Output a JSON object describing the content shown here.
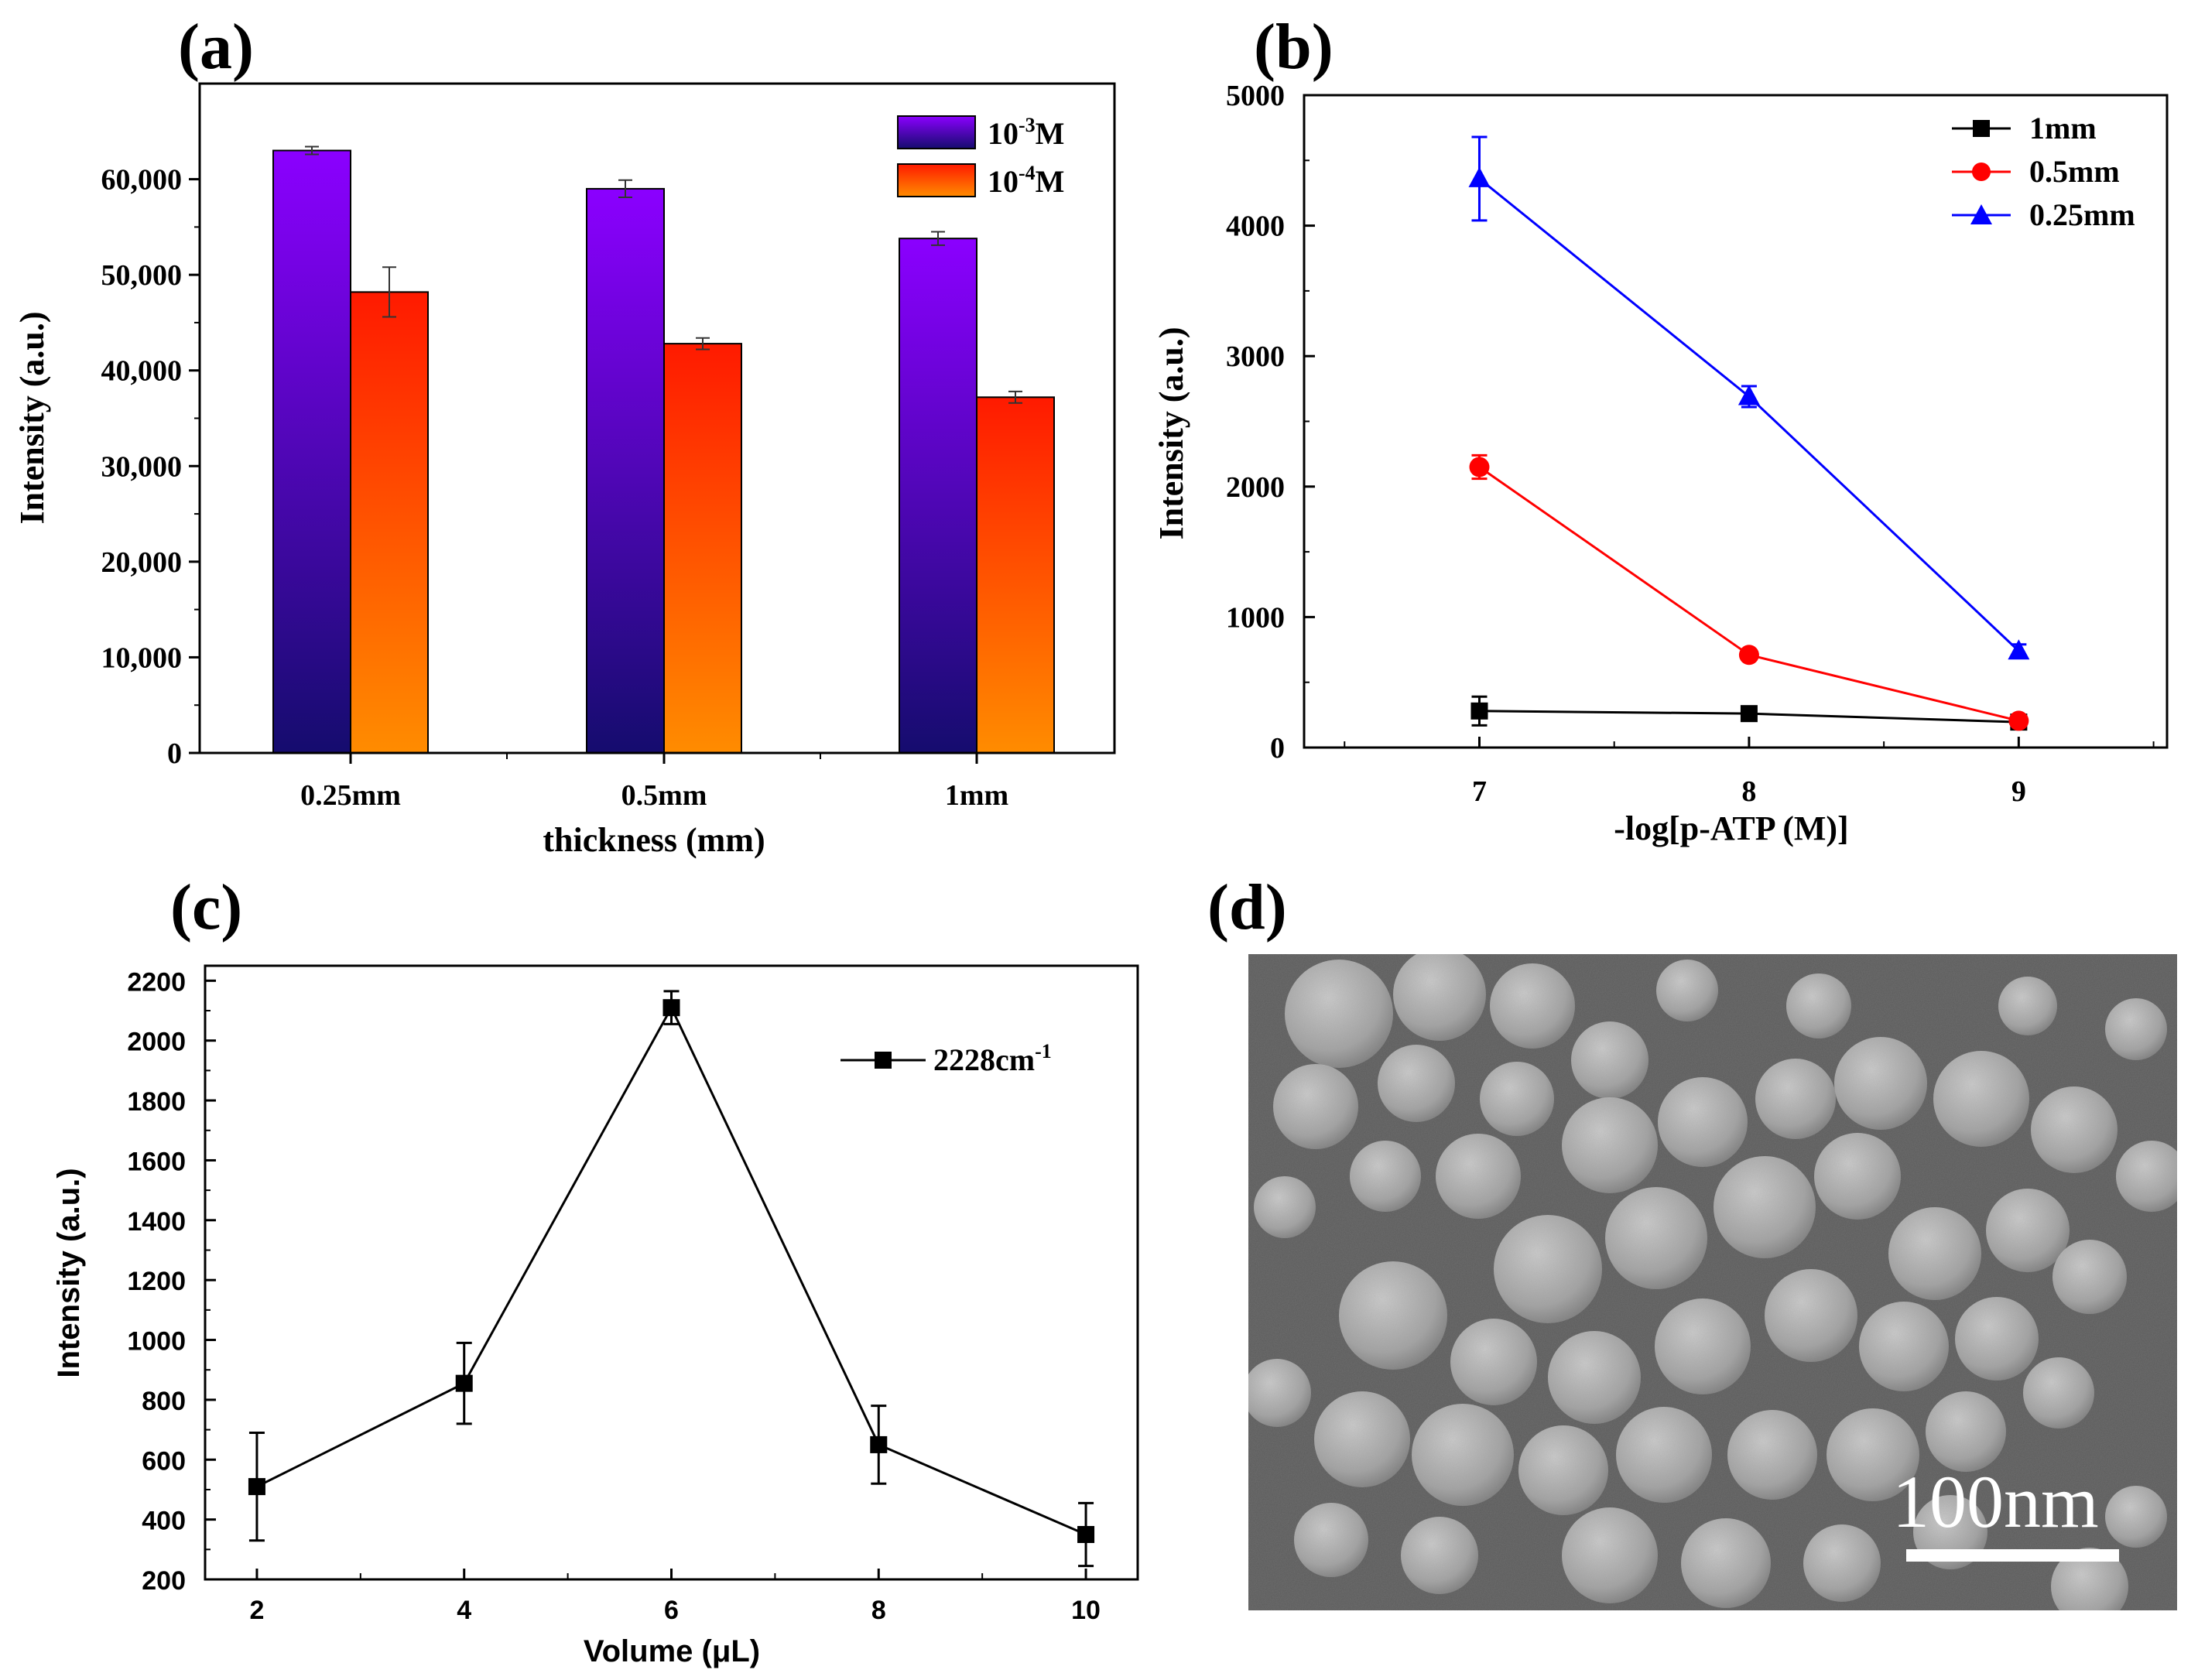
{
  "chart_data": [
    {
      "panel": "(a)",
      "type": "bar",
      "categories": [
        "0.25mm",
        "0.5mm",
        "1mm"
      ],
      "series": [
        {
          "name_base": "10",
          "name_exp": "-3",
          "name_unit": "M",
          "values": [
            63000,
            59000,
            53800
          ],
          "errors": [
            400,
            900,
            700
          ]
        },
        {
          "name_base": "10",
          "name_exp": "-4",
          "name_unit": "M",
          "values": [
            48200,
            42800,
            37200
          ],
          "errors": [
            2600,
            600,
            600
          ]
        }
      ],
      "xlabel": "thickness (mm)",
      "ylabel": "Intensity (a.u.)",
      "ylim": [
        0,
        70000
      ],
      "yticks": [
        0,
        10000,
        20000,
        30000,
        40000,
        50000,
        60000
      ],
      "ytick_labels": [
        "0",
        "10,000",
        "20,000",
        "30,000",
        "40,000",
        "50,000",
        "60,000"
      ],
      "legend_position": "top-right",
      "colors": {
        "top_a": "#8b00ff",
        "bottom_a": "#150c6e",
        "top_b": "#ff1a00",
        "bottom_b": "#ff8c00"
      }
    },
    {
      "panel": "(b)",
      "type": "line",
      "x": [
        7,
        8,
        9
      ],
      "xtick_labels": [
        "7",
        "8",
        "9"
      ],
      "series": [
        {
          "name": "1mm",
          "values": [
            280,
            260,
            195
          ],
          "errors": [
            110,
            30,
            20
          ],
          "color": "#000000",
          "marker": "square"
        },
        {
          "name": "0.5mm",
          "values": [
            2150,
            710,
            205
          ],
          "errors": [
            90,
            25,
            30
          ],
          "color": "#ff0000",
          "marker": "circle"
        },
        {
          "name": "0.25mm",
          "values": [
            4360,
            2690,
            740
          ],
          "errors": [
            320,
            80,
            50
          ],
          "color": "#0000ff",
          "marker": "triangle"
        }
      ],
      "xlabel": "-log[p-ATP (M)]",
      "ylabel": "Intensity (a.u.)",
      "xlim": [
        6.35,
        9.55
      ],
      "ylim": [
        0,
        5000
      ],
      "yticks": [
        0,
        1000,
        2000,
        3000,
        4000,
        5000
      ],
      "ytick_labels": [
        "0",
        "1000",
        "2000",
        "3000",
        "4000",
        "5000"
      ],
      "legend_position": "top-right"
    },
    {
      "panel": "(c)",
      "type": "line",
      "x": [
        2,
        4,
        6,
        8,
        10
      ],
      "xtick_labels": [
        "2",
        "4",
        "6",
        "8",
        "10"
      ],
      "series": [
        {
          "name_base": "2228cm",
          "name_exp": "-1",
          "values": [
            510,
            855,
            2110,
            650,
            350
          ],
          "errors": [
            180,
            135,
            55,
            130,
            105
          ],
          "color": "#000000",
          "marker": "square"
        }
      ],
      "xlabel": "Volume (μL)",
      "ylabel": "Intensity (a.u.)",
      "xlim": [
        1.5,
        10.5
      ],
      "ylim": [
        200,
        2250
      ],
      "yticks": [
        200,
        400,
        600,
        800,
        1000,
        1200,
        1400,
        1600,
        1800,
        2000,
        2200
      ],
      "ytick_labels": [
        "200",
        "400",
        "600",
        "800",
        "1000",
        "1200",
        "1400",
        "1600",
        "1800",
        "2000",
        "2200"
      ],
      "legend_position": "top-right"
    }
  ],
  "panels": {
    "a": {
      "label": "(a)"
    },
    "b": {
      "label": "(b)"
    },
    "c": {
      "label": "(c)"
    },
    "d": {
      "label": "(d)",
      "scale_bar_text": "100nm",
      "image_description_color": "#555555"
    }
  }
}
